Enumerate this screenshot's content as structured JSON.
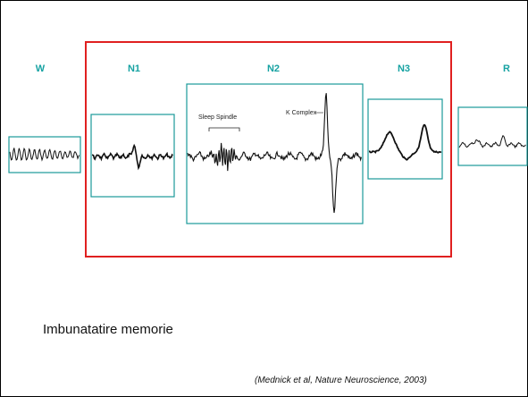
{
  "stages": [
    {
      "label": "W"
    },
    {
      "label": "N1"
    },
    {
      "label": "N2",
      "annotations": [
        "Sleep Spindle",
        "K Complex"
      ]
    },
    {
      "label": "N3"
    },
    {
      "label": "R"
    }
  ],
  "caption": "Imbunatatire memorie",
  "citation": "(Mednick et al, Nature Neuroscience, 2003)"
}
